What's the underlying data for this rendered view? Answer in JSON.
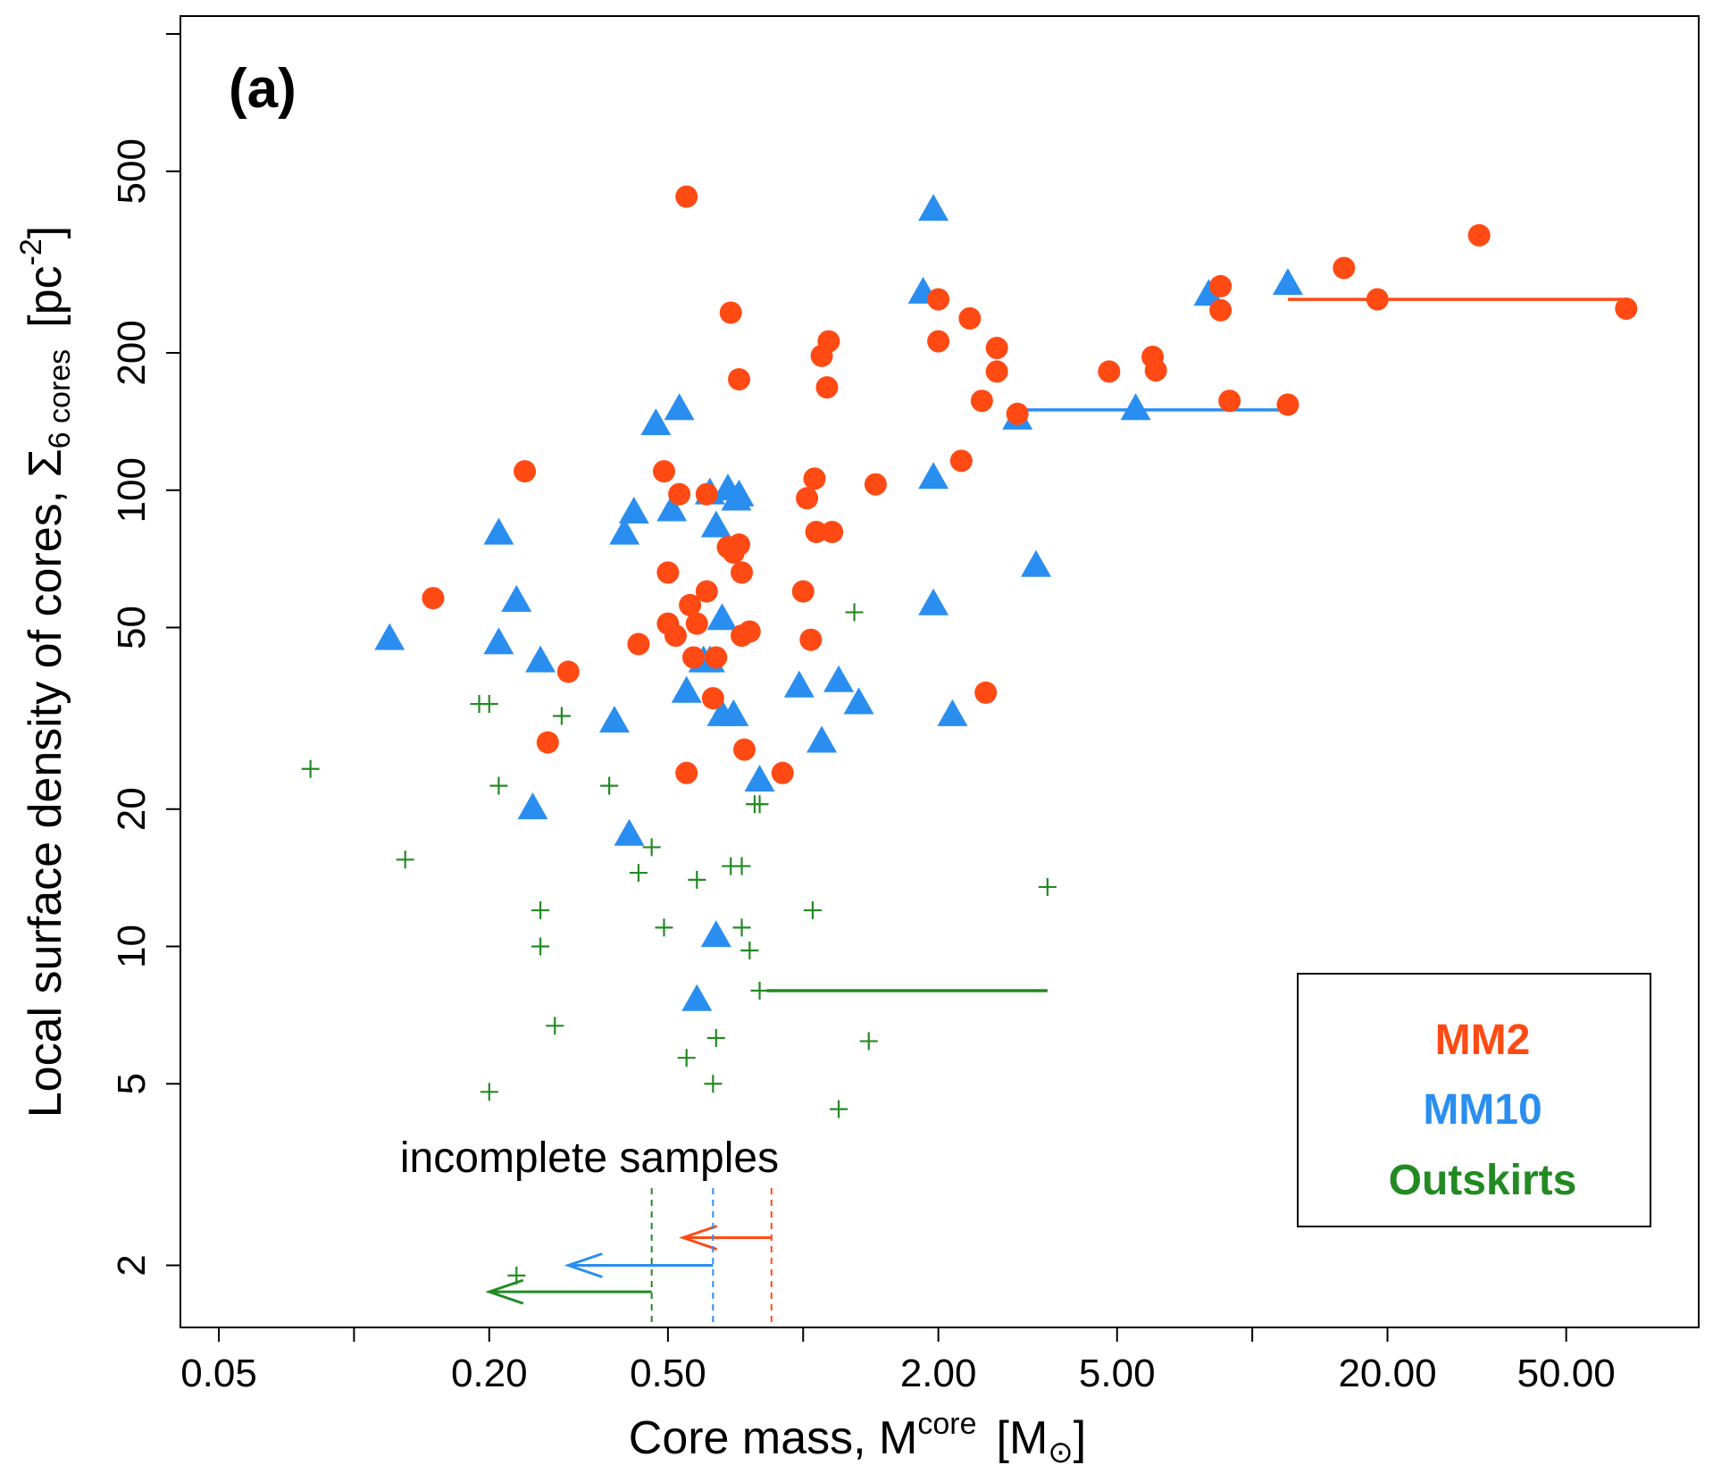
{
  "chart_data": {
    "type": "scatter",
    "panel_label": "(a)",
    "xlabel": "Core mass, M",
    "xlabel_sup": "core",
    "xlabel_unit": "[M",
    "xlabel_unit_sub": "⊙",
    "xlabel_unit_close": "]",
    "ylabel_main": "Local surface density of cores, Σ",
    "ylabel_sub": "6 cores",
    "ylabel_unit": "[pc",
    "ylabel_unit_sup": "-2",
    "ylabel_unit_close": "]",
    "x_scale": "log",
    "y_scale": "log",
    "xlim": [
      0.045,
      90
    ],
    "ylim": [
      1.6,
      1000
    ],
    "x_ticks": [
      0.05,
      0.2,
      0.5,
      2,
      5,
      20,
      50
    ],
    "x_tick_labels": [
      "0.05",
      "0.20",
      "0.50",
      "2.00",
      "5.00",
      "20.00",
      "50.00"
    ],
    "x_minor_ticks": [
      0.1,
      1,
      10
    ],
    "y_ticks": [
      2,
      5,
      10,
      20,
      50,
      100,
      200,
      500
    ],
    "y_tick_labels": [
      "2",
      "5",
      "10",
      "20",
      "50",
      "100",
      "200",
      "500"
    ],
    "y_minor_ticks": [
      1000
    ],
    "legend_position": "bottom-right",
    "colors": {
      "MM2": "#ff4a14",
      "MM10": "#2a8ef0",
      "Outskirts": "#238a23"
    },
    "series": [
      {
        "name": "MM2",
        "marker": "circle",
        "color": "#ff4a14",
        "points": [
          [
            0.55,
            440
          ],
          [
            0.69,
            245
          ],
          [
            0.72,
            175
          ],
          [
            0.24,
            110
          ],
          [
            0.49,
            110
          ],
          [
            0.53,
            98
          ],
          [
            0.61,
            98
          ],
          [
            0.15,
            58
          ],
          [
            0.43,
            46
          ],
          [
            0.5,
            66
          ],
          [
            0.5,
            51
          ],
          [
            0.52,
            48
          ],
          [
            0.56,
            56
          ],
          [
            0.58,
            51
          ],
          [
            0.57,
            43
          ],
          [
            0.61,
            60
          ],
          [
            0.63,
            35
          ],
          [
            0.64,
            43
          ],
          [
            0.68,
            75
          ],
          [
            0.7,
            73
          ],
          [
            0.72,
            76
          ],
          [
            0.73,
            66
          ],
          [
            0.73,
            48
          ],
          [
            0.76,
            49
          ],
          [
            0.74,
            27
          ],
          [
            0.3,
            40
          ],
          [
            0.27,
            28
          ],
          [
            0.55,
            24
          ],
          [
            0.9,
            24
          ],
          [
            1.0,
            60
          ],
          [
            1.02,
            96
          ],
          [
            1.06,
            106
          ],
          [
            1.07,
            81
          ],
          [
            1.04,
            47
          ],
          [
            1.1,
            197
          ],
          [
            1.14,
            212
          ],
          [
            1.13,
            168
          ],
          [
            1.16,
            81
          ],
          [
            1.45,
            103
          ],
          [
            2.0,
            262
          ],
          [
            2.0,
            212
          ],
          [
            2.35,
            238
          ],
          [
            2.7,
            205
          ],
          [
            2.7,
            182
          ],
          [
            2.25,
            116
          ],
          [
            2.5,
            157
          ],
          [
            2.55,
            36
          ],
          [
            3.0,
            147
          ],
          [
            4.8,
            182
          ],
          [
            6.0,
            196
          ],
          [
            6.1,
            183
          ],
          [
            8.5,
            280
          ],
          [
            8.5,
            248
          ],
          [
            8.9,
            157
          ],
          [
            12.0,
            154
          ],
          [
            16.0,
            307
          ],
          [
            19.0,
            262
          ],
          [
            32.0,
            362
          ],
          [
            68.0,
            250
          ]
        ]
      },
      {
        "name": "MM10",
        "marker": "triangle",
        "color": "#2a8ef0",
        "points": [
          [
            0.12,
            47
          ],
          [
            0.21,
            80
          ],
          [
            0.21,
            46
          ],
          [
            0.23,
            57
          ],
          [
            0.26,
            42
          ],
          [
            0.25,
            20
          ],
          [
            0.38,
            31
          ],
          [
            0.4,
            80
          ],
          [
            0.41,
            17.5
          ],
          [
            0.42,
            89
          ],
          [
            0.47,
            139
          ],
          [
            0.51,
            90
          ],
          [
            0.53,
            150
          ],
          [
            0.55,
            36
          ],
          [
            0.58,
            7.6
          ],
          [
            0.62,
            42
          ],
          [
            0.6,
            42
          ],
          [
            0.62,
            98
          ],
          [
            0.64,
            83
          ],
          [
            0.64,
            10.5
          ],
          [
            0.66,
            52
          ],
          [
            0.66,
            32
          ],
          [
            0.68,
            100
          ],
          [
            0.7,
            32
          ],
          [
            0.71,
            95
          ],
          [
            0.72,
            97
          ],
          [
            0.8,
            23
          ],
          [
            0.98,
            37
          ],
          [
            1.1,
            28
          ],
          [
            1.2,
            38
          ],
          [
            1.33,
            34
          ],
          [
            1.85,
            270
          ],
          [
            1.95,
            410
          ],
          [
            1.95,
            56
          ],
          [
            1.95,
            106
          ],
          [
            2.15,
            32
          ],
          [
            3.0,
            143
          ],
          [
            3.3,
            68
          ],
          [
            5.5,
            150
          ],
          [
            8.0,
            267
          ],
          [
            12.0,
            282
          ]
        ]
      },
      {
        "name": "Outskirts",
        "marker": "plus",
        "color": "#238a23",
        "points": [
          [
            0.08,
            24.5
          ],
          [
            0.13,
            15.5
          ],
          [
            0.19,
            34
          ],
          [
            0.2,
            34
          ],
          [
            0.2,
            4.8
          ],
          [
            0.21,
            22.5
          ],
          [
            0.23,
            1.9
          ],
          [
            0.26,
            12
          ],
          [
            0.26,
            10
          ],
          [
            0.28,
            6.7
          ],
          [
            0.29,
            32
          ],
          [
            0.37,
            22.5
          ],
          [
            0.43,
            14.5
          ],
          [
            0.46,
            16.5
          ],
          [
            0.49,
            11
          ],
          [
            0.55,
            5.7
          ],
          [
            0.58,
            14
          ],
          [
            0.63,
            5
          ],
          [
            0.64,
            6.3
          ],
          [
            0.69,
            15
          ],
          [
            0.73,
            15
          ],
          [
            0.73,
            11
          ],
          [
            0.76,
            9.8
          ],
          [
            0.8,
            20.5
          ],
          [
            0.8,
            8
          ],
          [
            1.05,
            12
          ],
          [
            1.2,
            4.4
          ],
          [
            1.3,
            54
          ],
          [
            1.4,
            6.2
          ],
          [
            3.5,
            13.5
          ],
          [
            0.78,
            20.5
          ]
        ]
      }
    ],
    "range_lines": [
      {
        "series": "MM2",
        "y": 262,
        "x_from": 12.0,
        "x_to": 68.0
      },
      {
        "series": "MM10",
        "y": 150,
        "x_from": 3.0,
        "x_to": 12.0
      },
      {
        "series": "Outskirts",
        "y": 8,
        "x_from": 0.83,
        "x_to": 3.5
      }
    ],
    "incompleteness": {
      "label": "incomplete samples",
      "limits": [
        {
          "series": "MM2",
          "x": 0.85,
          "arrow_y": 2.3,
          "arrow_to": 0.54
        },
        {
          "series": "MM10",
          "x": 0.63,
          "arrow_y": 2.0,
          "arrow_to": 0.3
        },
        {
          "series": "Outskirts",
          "x": 0.46,
          "arrow_y": 1.75,
          "arrow_to": 0.2
        }
      ]
    },
    "legend": [
      "MM2",
      "MM10",
      "Outskirts"
    ]
  }
}
